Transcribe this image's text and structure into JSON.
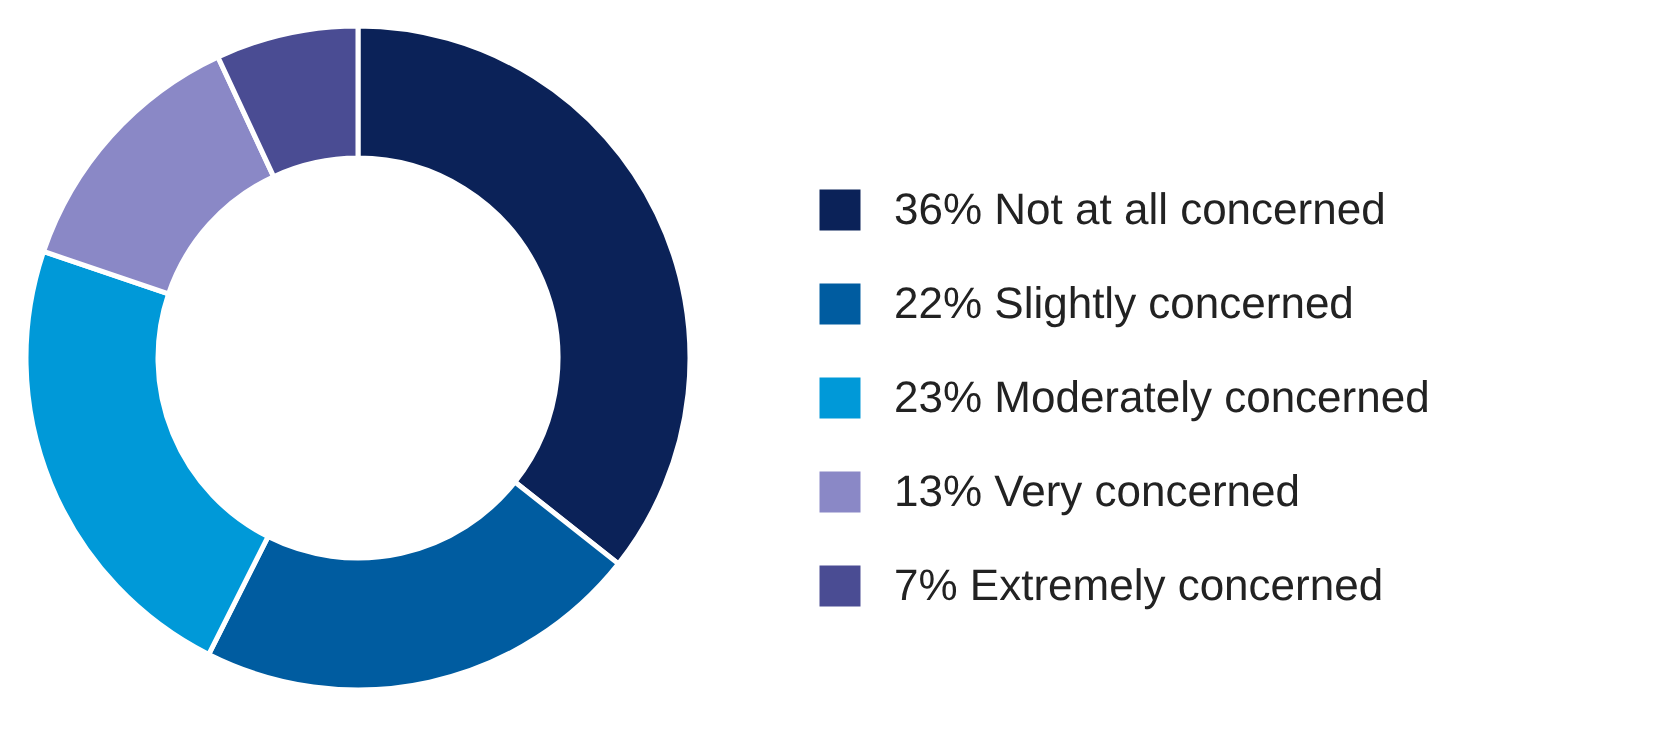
{
  "chart_data": {
    "type": "donut",
    "categories": [
      "Not at all concerned",
      "Slightly concerned",
      "Moderately concerned",
      "Very concerned",
      "Extremely concerned"
    ],
    "values": [
      36,
      22,
      23,
      13,
      7
    ],
    "value_labels": [
      "36%",
      "22%",
      "23%",
      "13%",
      "7%"
    ],
    "colors": [
      "#0b2258",
      "#005ca0",
      "#0099d8",
      "#8a88c6",
      "#4a4c93"
    ],
    "legend": "right"
  }
}
